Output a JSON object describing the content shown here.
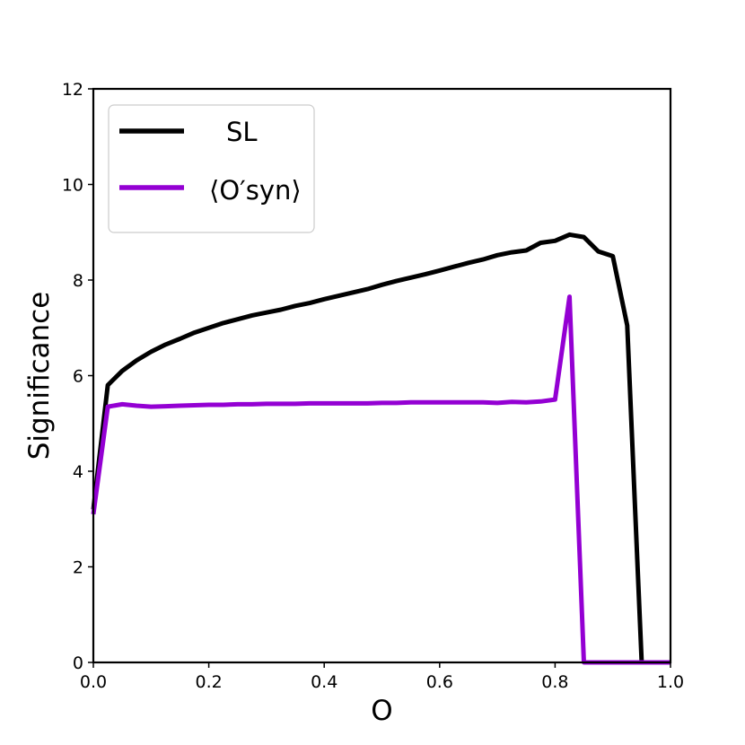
{
  "chart_data": {
    "type": "line",
    "xlabel": "O",
    "ylabel": "Significance",
    "xlim": [
      0.0,
      1.0
    ],
    "ylim": [
      0,
      12
    ],
    "xticks": [
      "0.0",
      "0.2",
      "0.4",
      "0.6",
      "0.8",
      "1.0"
    ],
    "yticks": [
      "0",
      "2",
      "4",
      "6",
      "8",
      "10",
      "12"
    ],
    "grid": false,
    "legend_position": "top-left",
    "series": [
      {
        "name": "SL",
        "color": "#000000",
        "x": [
          0.0,
          0.025,
          0.05,
          0.075,
          0.1,
          0.125,
          0.15,
          0.175,
          0.2,
          0.225,
          0.25,
          0.275,
          0.3,
          0.325,
          0.35,
          0.375,
          0.4,
          0.425,
          0.45,
          0.475,
          0.5,
          0.525,
          0.55,
          0.575,
          0.6,
          0.625,
          0.65,
          0.675,
          0.7,
          0.725,
          0.75,
          0.775,
          0.8,
          0.825,
          0.85,
          0.875,
          0.9,
          0.925,
          0.95,
          0.975,
          1.0
        ],
        "values": [
          3.2,
          5.8,
          6.1,
          6.32,
          6.5,
          6.65,
          6.77,
          6.9,
          7.0,
          7.1,
          7.18,
          7.26,
          7.32,
          7.38,
          7.46,
          7.52,
          7.6,
          7.67,
          7.74,
          7.81,
          7.9,
          7.98,
          8.05,
          8.12,
          8.2,
          8.28,
          8.36,
          8.43,
          8.52,
          8.58,
          8.62,
          8.78,
          8.82,
          8.95,
          8.9,
          8.6,
          8.5,
          7.05,
          0.0,
          0.0,
          0.0
        ]
      },
      {
        "name": "⟨O′syn⟩",
        "color": "#9400d3",
        "x": [
          0.0,
          0.025,
          0.05,
          0.075,
          0.1,
          0.125,
          0.15,
          0.175,
          0.2,
          0.225,
          0.25,
          0.275,
          0.3,
          0.325,
          0.35,
          0.375,
          0.4,
          0.425,
          0.45,
          0.475,
          0.5,
          0.525,
          0.55,
          0.575,
          0.6,
          0.625,
          0.65,
          0.675,
          0.7,
          0.725,
          0.75,
          0.775,
          0.8,
          0.825,
          0.85,
          0.875,
          0.9,
          0.925,
          0.95,
          0.975,
          1.0
        ],
        "values": [
          3.1,
          5.35,
          5.4,
          5.37,
          5.35,
          5.36,
          5.37,
          5.38,
          5.39,
          5.39,
          5.4,
          5.4,
          5.41,
          5.41,
          5.41,
          5.42,
          5.42,
          5.42,
          5.42,
          5.42,
          5.43,
          5.43,
          5.44,
          5.44,
          5.44,
          5.44,
          5.44,
          5.44,
          5.43,
          5.45,
          5.44,
          5.46,
          5.5,
          7.65,
          0.0,
          0.0,
          0.0,
          0.0,
          0.0,
          0.0,
          0.0
        ]
      }
    ]
  }
}
